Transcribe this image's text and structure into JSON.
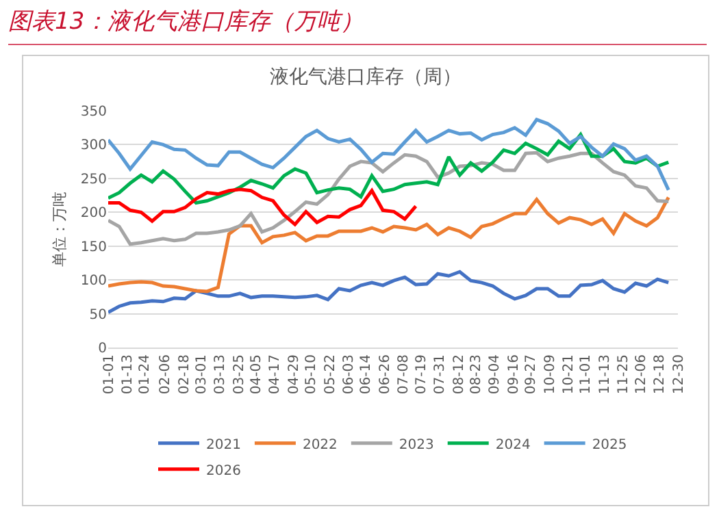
{
  "chart_data": {
    "type": "line",
    "title": "图表13：液化气港口库存（万吨）",
    "subtitle": "液化气港口库存（周）",
    "ylabel": "单位：万吨",
    "x": [
      "--01-01",
      "--01-08",
      "--01-15",
      "--01-22",
      "--01-29",
      "--02-05",
      "--02-12",
      "--02-19",
      "--02-26",
      "--03-05",
      "--03-12",
      "--03-19",
      "--03-26",
      "--04-02",
      "--04-09",
      "--04-16",
      "--04-23",
      "--04-30",
      "--05-07",
      "--05-14",
      "--05-21",
      "--05-28",
      "--06-04",
      "--06-11",
      "--06-18",
      "--06-25",
      "--07-02",
      "--07-09",
      "--07-16",
      "--07-23",
      "--07-30",
      "--08-06",
      "--08-13",
      "--08-20",
      "--08-27",
      "--09-03",
      "--09-10",
      "--09-17",
      "--09-24",
      "--10-01",
      "--10-08",
      "--10-15",
      "--10-22",
      "--10-29",
      "--11-05",
      "--11-12",
      "--11-19",
      "--11-26",
      "--12-03",
      "--12-10",
      "--12-17",
      "--12-24"
    ],
    "series": [
      {
        "name": "2021",
        "color": "#4472c4",
        "values": [
          52,
          61,
          66,
          67,
          69,
          68,
          73,
          72,
          84,
          80,
          76,
          76,
          80,
          74,
          76,
          76,
          75,
          74,
          75,
          77,
          71,
          87,
          84,
          92,
          96,
          92,
          99,
          104,
          93,
          94,
          109,
          106,
          112,
          99,
          96,
          91,
          80,
          72,
          77,
          87,
          87,
          76,
          76,
          92,
          93,
          99,
          87,
          82,
          95,
          91,
          101,
          96
        ]
      },
      {
        "name": "2022",
        "color": "#ed7d31",
        "values": [
          91,
          94,
          96,
          97,
          96,
          91,
          90,
          87,
          84,
          83,
          89,
          168,
          180,
          180,
          155,
          164,
          166,
          170,
          158,
          165,
          165,
          172,
          172,
          172,
          177,
          171,
          179,
          177,
          174,
          182,
          167,
          177,
          172,
          163,
          179,
          183,
          191,
          198,
          198,
          219,
          198,
          184,
          192,
          189,
          182,
          190,
          169,
          198,
          187,
          180,
          192,
          222
        ]
      },
      {
        "name": "2023",
        "color": "#a5a5a5",
        "values": [
          188,
          179,
          153,
          155,
          158,
          161,
          158,
          160,
          169,
          169,
          171,
          174,
          180,
          198,
          171,
          177,
          188,
          201,
          215,
          212,
          226,
          249,
          268,
          275,
          273,
          260,
          273,
          285,
          283,
          275,
          252,
          258,
          268,
          269,
          273,
          271,
          262,
          262,
          287,
          288,
          275,
          280,
          283,
          287,
          287,
          273,
          260,
          255,
          239,
          236,
          217,
          216
        ]
      },
      {
        "name": "2024",
        "color": "#00b050",
        "values": [
          221,
          229,
          243,
          255,
          245,
          261,
          249,
          231,
          214,
          217,
          223,
          229,
          237,
          247,
          242,
          236,
          254,
          264,
          258,
          229,
          233,
          236,
          234,
          223,
          254,
          231,
          234,
          241,
          243,
          245,
          241,
          282,
          255,
          273,
          261,
          274,
          292,
          287,
          302,
          294,
          285,
          305,
          294,
          315,
          283,
          283,
          294,
          275,
          273,
          280,
          268,
          274
        ]
      },
      {
        "name": "2025",
        "color": "#5b9bd5",
        "values": [
          307,
          287,
          264,
          284,
          304,
          300,
          293,
          292,
          280,
          270,
          269,
          289,
          289,
          280,
          271,
          266,
          280,
          296,
          312,
          321,
          309,
          304,
          308,
          293,
          274,
          287,
          286,
          304,
          321,
          304,
          312,
          321,
          316,
          317,
          307,
          315,
          318,
          325,
          314,
          337,
          331,
          320,
          302,
          312,
          296,
          283,
          301,
          294,
          277,
          283,
          268,
          233
        ]
      },
      {
        "name": "2026",
        "color": "#ff0000",
        "values": [
          214,
          214,
          203,
          200,
          187,
          201,
          201,
          207,
          220,
          229,
          227,
          232,
          234,
          232,
          222,
          217,
          196,
          182,
          201,
          185,
          194,
          193,
          204,
          210,
          232,
          203,
          201,
          190,
          209,
          null,
          null,
          null,
          null,
          null,
          null,
          null,
          null,
          null,
          null,
          null,
          null,
          null,
          null,
          null,
          null,
          null,
          null,
          null,
          null,
          null,
          null,
          null
        ]
      }
    ],
    "xlim": [
      "--01-01",
      "--12-30"
    ],
    "xticks": [
      {
        "value": "--01-01",
        "label": "01-01"
      },
      {
        "value": "--01-13",
        "label": "01-13"
      },
      {
        "value": "--01-24",
        "label": "01-24"
      },
      {
        "value": "--02-06",
        "label": "02-06"
      },
      {
        "value": "--02-18",
        "label": "02-18"
      },
      {
        "value": "--03-01",
        "label": "03-01"
      },
      {
        "value": "--03-13",
        "label": "03-13"
      },
      {
        "value": "--03-25",
        "label": "03-25"
      },
      {
        "value": "--04-05",
        "label": "04-05"
      },
      {
        "value": "--04-17",
        "label": "04-17"
      },
      {
        "value": "--04-29",
        "label": "04-29"
      },
      {
        "value": "--05-10",
        "label": "05-10"
      },
      {
        "value": "--05-22",
        "label": "05-22"
      },
      {
        "value": "--06-03",
        "label": "06-03"
      },
      {
        "value": "--06-14",
        "label": "06-14"
      },
      {
        "value": "--06-26",
        "label": "06-26"
      },
      {
        "value": "--07-08",
        "label": "07-08"
      },
      {
        "value": "--07-19",
        "label": "07-19"
      },
      {
        "value": "--07-31",
        "label": "07-31"
      },
      {
        "value": "--08-12",
        "label": "08-12"
      },
      {
        "value": "--08-23",
        "label": "08-23"
      },
      {
        "value": "--09-04",
        "label": "09-04"
      },
      {
        "value": "--09-16",
        "label": "09-16"
      },
      {
        "value": "--09-27",
        "label": "09-27"
      },
      {
        "value": "--10-09",
        "label": "10-09"
      },
      {
        "value": "--10-21",
        "label": "10-21"
      },
      {
        "value": "--11-01",
        "label": "11-01"
      },
      {
        "value": "--11-13",
        "label": "11-13"
      },
      {
        "value": "--11-25",
        "label": "11-25"
      },
      {
        "value": "--12-06",
        "label": "12-06"
      },
      {
        "value": "--12-18",
        "label": "12-18"
      },
      {
        "value": "--12-30",
        "label": "12-30"
      }
    ],
    "ylim": [
      0,
      350
    ],
    "yticks": [
      0,
      50,
      100,
      150,
      200,
      250,
      300,
      350
    ],
    "grid": "y",
    "legend": "bottom",
    "marker": "none",
    "line_style": "solid"
  }
}
